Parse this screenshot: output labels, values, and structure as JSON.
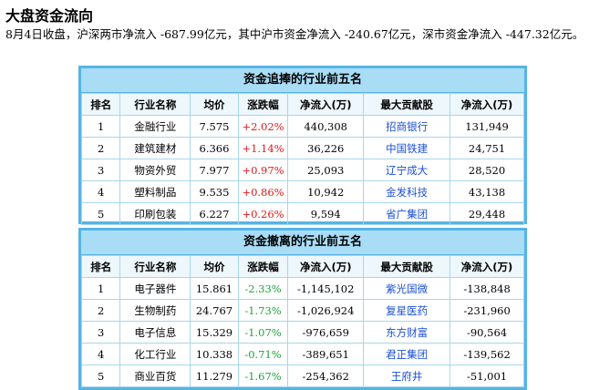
{
  "title": "大盘资金流向",
  "summary": "8月4日收盘，沪深两市净流入 -687.99亿元，其中沪市资金净流入 -240.67亿元，深市资金净流入 -447.32亿元。",
  "headers": [
    "排名",
    "行业名称",
    "均价",
    "涨跌幅",
    "净流入(万)",
    "最大贡献股",
    "净流入(万)"
  ],
  "table_in": {
    "caption": "资金追捧的行业前五名",
    "rows": [
      {
        "rank": "1",
        "sector": "金融行业",
        "price": "7.575",
        "change": "+2.02%",
        "net": "440,308",
        "stock": "招商银行",
        "stock_net": "131,949"
      },
      {
        "rank": "2",
        "sector": "建筑建材",
        "price": "6.366",
        "change": "+1.14%",
        "net": "36,226",
        "stock": "中国铁建",
        "stock_net": "24,751"
      },
      {
        "rank": "3",
        "sector": "物资外贸",
        "price": "7.977",
        "change": "+0.97%",
        "net": "25,093",
        "stock": "辽宁成大",
        "stock_net": "28,520"
      },
      {
        "rank": "4",
        "sector": "塑料制品",
        "price": "9.535",
        "change": "+0.86%",
        "net": "10,942",
        "stock": "金发科技",
        "stock_net": "43,138"
      },
      {
        "rank": "5",
        "sector": "印刷包装",
        "price": "6.227",
        "change": "+0.26%",
        "net": "9,594",
        "stock": "省广集团",
        "stock_net": "29,448"
      }
    ]
  },
  "table_out": {
    "caption": "资金撤离的行业前五名",
    "rows": [
      {
        "rank": "1",
        "sector": "电子器件",
        "price": "15.861",
        "change": "-2.33%",
        "net": "-1,145,102",
        "stock": "紫光国微",
        "stock_net": "-138,848"
      },
      {
        "rank": "2",
        "sector": "生物制药",
        "price": "24.767",
        "change": "-1.73%",
        "net": "-1,026,924",
        "stock": "复星医药",
        "stock_net": "-231,960"
      },
      {
        "rank": "3",
        "sector": "电子信息",
        "price": "15.329",
        "change": "-1.07%",
        "net": "-976,659",
        "stock": "东方财富",
        "stock_net": "-90,564"
      },
      {
        "rank": "4",
        "sector": "化工行业",
        "price": "10.338",
        "change": "-0.71%",
        "net": "-389,651",
        "stock": "君正集团",
        "stock_net": "-139,562"
      },
      {
        "rank": "5",
        "sector": "商业百货",
        "price": "11.279",
        "change": "-1.67%",
        "net": "-254,362",
        "stock": "王府井",
        "stock_net": "-51,001"
      }
    ]
  },
  "colors": {
    "up": "#e01919",
    "down": "#1ca33a",
    "link": "#1a4fd6",
    "border": "#55b4e6",
    "header_bg": "#a9ddf6"
  }
}
